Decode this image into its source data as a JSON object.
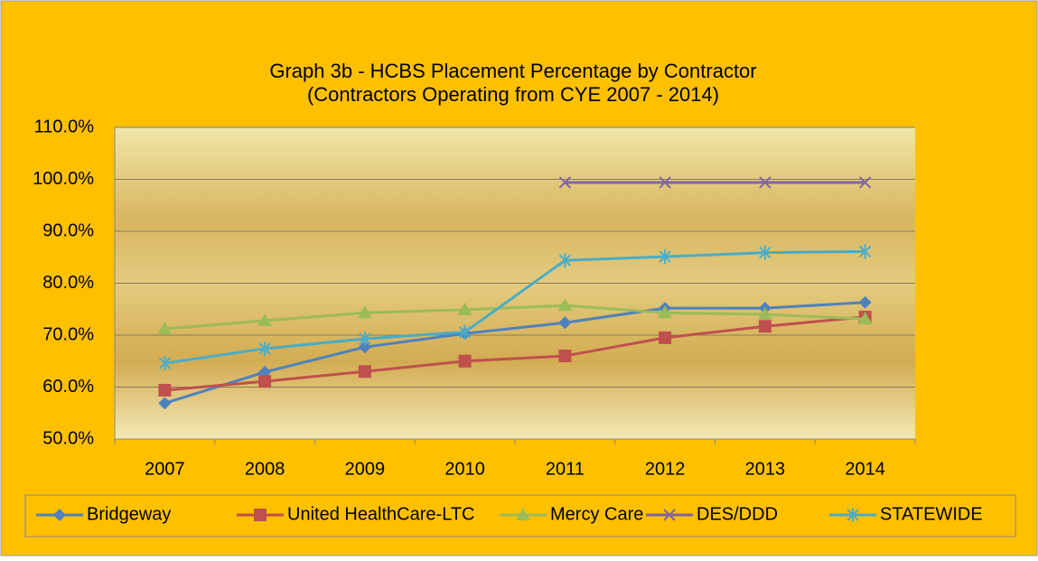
{
  "chart_data": {
    "type": "line",
    "title": "Graph 3b - HCBS Placement Percentage by Contractor",
    "subtitle": "(Contractors Operating from CYE 2007 - 2014)",
    "categories": [
      "2007",
      "2008",
      "2009",
      "2010",
      "2011",
      "2012",
      "2013",
      "2014"
    ],
    "series": [
      {
        "name": "Bridgeway",
        "color": "#4f81bd",
        "marker": "diamond",
        "values": [
          56.9,
          62.9,
          67.7,
          70.3,
          72.4,
          75.2,
          75.2,
          76.3
        ]
      },
      {
        "name": "United HealthCare-LTC",
        "color": "#c0504d",
        "marker": "square",
        "values": [
          59.4,
          61.1,
          63.0,
          65.0,
          66.0,
          69.5,
          71.7,
          73.5
        ]
      },
      {
        "name": "Mercy Care",
        "color": "#9bbb59",
        "marker": "triangle",
        "values": [
          71.2,
          72.8,
          74.3,
          74.9,
          75.7,
          74.3,
          74.0,
          73.1
        ]
      },
      {
        "name": "DES/DDD",
        "color": "#8064a2",
        "marker": "x",
        "values": [
          null,
          null,
          null,
          null,
          99.4,
          99.4,
          99.4,
          99.4
        ]
      },
      {
        "name": "STATEWIDE",
        "color": "#4bacc6",
        "marker": "star",
        "values": [
          64.6,
          67.4,
          69.3,
          70.6,
          84.4,
          85.1,
          85.9,
          86.1
        ]
      }
    ],
    "ylim": [
      50,
      110
    ],
    "yticks": [
      {
        "value": 50,
        "label": "50.0%"
      },
      {
        "value": 60,
        "label": "60.0%"
      },
      {
        "value": 70,
        "label": "70.0%"
      },
      {
        "value": 80,
        "label": "80.0%"
      },
      {
        "value": 90,
        "label": "90.0%"
      },
      {
        "value": 100,
        "label": "100.0%"
      },
      {
        "value": 110,
        "label": "110.0%"
      }
    ],
    "grid": true,
    "legend": "bottom"
  }
}
